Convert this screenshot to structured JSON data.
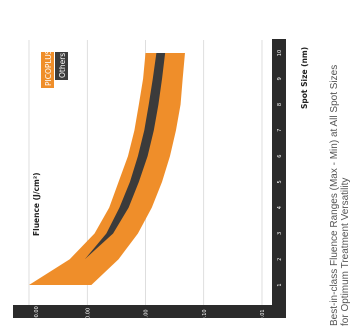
{
  "chart_data": {
    "type": "area",
    "orientation": "rotated-90-ccw",
    "title": "Best-in-class Fluence Ranges (Max - Min) at All Spot Sizes",
    "subtitle": "for Optimum Treatment Versatility",
    "xlabel": "Spot Size (nm)",
    "ylabel": "Fluence (J/cm²)",
    "yscale": "log",
    "ylim": [
      0.01,
      100
    ],
    "grid": true,
    "legend_placement": "top-right",
    "x": [
      1,
      2,
      3,
      4,
      5,
      6,
      7,
      8,
      9,
      10
    ],
    "x_ticks": [
      "1",
      "2",
      "3",
      "4",
      "5",
      "6",
      "7",
      "8",
      "9",
      "10"
    ],
    "y_ticks": [
      {
        "value": 100,
        "label": "100.00"
      },
      {
        "value": 10,
        "label": "10.00"
      },
      {
        "value": 1,
        "label": "1.00"
      },
      {
        "value": 0.1,
        "label": "0.10"
      },
      {
        "value": 0.01,
        "label": "0.01"
      }
    ],
    "series": [
      {
        "name": "PICOPLUS",
        "color": "#ef8e2a",
        "max": [
          100,
          20,
          7.5,
          4.2,
          2.9,
          2.0,
          1.55,
          1.3,
          1.1,
          1.0
        ],
        "min": [
          8.5,
          2.9,
          1.35,
          0.78,
          0.52,
          0.38,
          0.3,
          0.25,
          0.23,
          0.21
        ]
      },
      {
        "name": "Others",
        "color": "#3b3b3b",
        "range_x": [
          2,
          3,
          4,
          5,
          6,
          7,
          8,
          9,
          10
        ],
        "max": [
          11,
          4.7,
          2.8,
          1.85,
          1.35,
          1.05,
          0.88,
          0.75,
          0.65
        ],
        "min": [
          11,
          3.6,
          1.95,
          1.3,
          0.92,
          0.72,
          0.6,
          0.52,
          0.46
        ]
      }
    ]
  }
}
